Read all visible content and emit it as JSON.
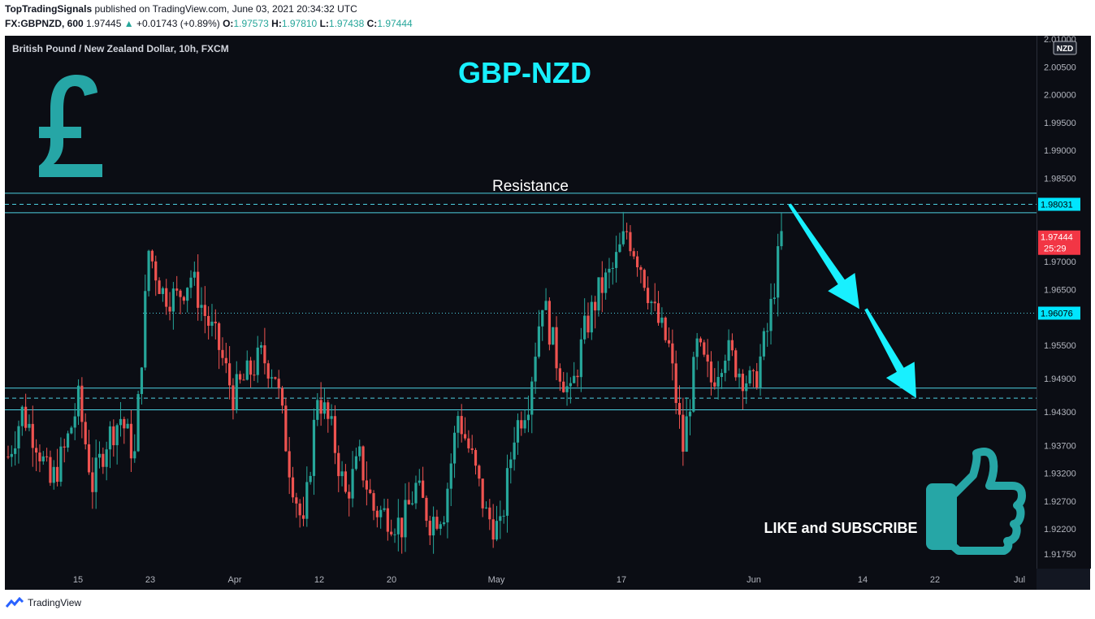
{
  "header": {
    "publisher": "TopTradingSignals",
    "published_text": "published on TradingView.com, June 03, 2021 20:34:32 UTC",
    "symbol": "FX:GBPNZD, 600",
    "last": "1.97445",
    "change_arrow": "▲",
    "change": "+0.01743 (+0.89%)",
    "o_label": "O:",
    "o_value": "1.97573",
    "h_label": "H:",
    "h_value": "1.97810",
    "l_label": "L:",
    "l_value": "1.97438",
    "c_label": "C:",
    "c_value": "1.97444"
  },
  "chart": {
    "legend": "British Pound / New Zealand Dollar, 10h, FXCM",
    "title": "GBP-NZD",
    "currency_badge": "NZD",
    "resistance_label": "Resistance",
    "cta_label": "LIKE and SUBSCRIBE",
    "price_tags": {
      "resistance": "1.98031",
      "current_price": "1.97444",
      "countdown": "25:29",
      "mid": "1.96076"
    },
    "icons": [
      "pound-sign-icon",
      "thumbs-up-icon",
      "down-arrow-icon"
    ]
  },
  "chart_data": {
    "type": "candlestick",
    "symbol": "FX:GBPNZD",
    "ylim": [
      1.915,
      2.012
    ],
    "y_ticks": [
      "2.01000",
      "2.00500",
      "2.00000",
      "1.99500",
      "1.99000",
      "1.98500",
      "1.98031",
      "1.97444",
      "1.97000",
      "1.96500",
      "1.96076",
      "1.95500",
      "1.94900",
      "1.94300",
      "1.93700",
      "1.93200",
      "1.92700",
      "1.92200",
      "1.91750"
    ],
    "x_ticks": [
      "15",
      "23",
      "Apr",
      "12",
      "20",
      "May",
      "17",
      "Jun",
      "14",
      "22",
      "Jul"
    ],
    "levels": {
      "resistance_zone": [
        1.9788,
        1.9823
      ],
      "resistance_dashed": 1.98031,
      "mid_dotted": 1.96076,
      "support_zone": [
        1.9434,
        1.9473
      ],
      "support_dashed": 1.9455
    },
    "close_path": [
      1.935,
      1.943,
      1.938,
      1.93,
      1.936,
      1.945,
      1.93,
      1.938,
      1.942,
      1.935,
      1.972,
      1.9645,
      1.9635,
      1.9675,
      1.9605,
      1.9545,
      1.946,
      1.9495,
      1.953,
      1.95,
      1.9335,
      1.9215,
      1.9465,
      1.9395,
      1.928,
      1.9345,
      1.9255,
      1.9245,
      1.9225,
      1.9295,
      1.9235,
      1.9255,
      1.9425,
      1.9345,
      1.9245,
      1.9215,
      1.9395,
      1.9455,
      1.9635,
      1.9525,
      1.9455,
      1.9575,
      1.9645,
      1.9685,
      1.9755,
      1.9695,
      1.9605,
      1.9545,
      1.9365,
      1.9545,
      1.9485,
      1.9545,
      1.9505,
      1.9475,
      1.9575,
      1.97444
    ],
    "annotations": {
      "arrow1_from": 1.9803,
      "arrow1_to": 1.9615,
      "arrow2_from": 1.9615,
      "arrow2_to": 1.9455
    },
    "colors": {
      "up": "#26a69a",
      "down": "#ef5350",
      "level": "#4dd0e1",
      "title": "#18f0ff",
      "accent": "#26a6a6",
      "arrow": "#18f0ff",
      "current_tag": "#f23645",
      "level_tag": "#00e5ff"
    }
  }
}
